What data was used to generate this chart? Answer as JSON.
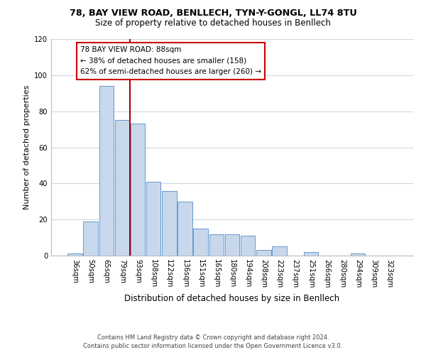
{
  "title": "78, BAY VIEW ROAD, BENLLECH, TYN-Y-GONGL, LL74 8TU",
  "subtitle": "Size of property relative to detached houses in Benllech",
  "xlabel": "Distribution of detached houses by size in Benllech",
  "ylabel": "Number of detached properties",
  "bar_labels": [
    "36sqm",
    "50sqm",
    "65sqm",
    "79sqm",
    "93sqm",
    "108sqm",
    "122sqm",
    "136sqm",
    "151sqm",
    "165sqm",
    "180sqm",
    "194sqm",
    "208sqm",
    "223sqm",
    "237sqm",
    "251sqm",
    "266sqm",
    "280sqm",
    "294sqm",
    "309sqm",
    "323sqm"
  ],
  "bar_values": [
    1,
    19,
    94,
    75,
    73,
    41,
    36,
    30,
    15,
    12,
    12,
    11,
    3,
    5,
    0,
    2,
    0,
    0,
    1,
    0,
    0
  ],
  "bar_color": "#c8d8ec",
  "bar_edge_color": "#6699cc",
  "ylim": [
    0,
    120
  ],
  "yticks": [
    0,
    20,
    40,
    60,
    80,
    100,
    120
  ],
  "vline_color": "#aa0000",
  "annotation_title": "78 BAY VIEW ROAD: 88sqm",
  "annotation_line1": "← 38% of detached houses are smaller (158)",
  "annotation_line2": "62% of semi-detached houses are larger (260) →",
  "footer_line1": "Contains HM Land Registry data © Crown copyright and database right 2024.",
  "footer_line2": "Contains public sector information licensed under the Open Government Licence v3.0.",
  "background_color": "#ffffff",
  "grid_color": "#ccd8e4"
}
